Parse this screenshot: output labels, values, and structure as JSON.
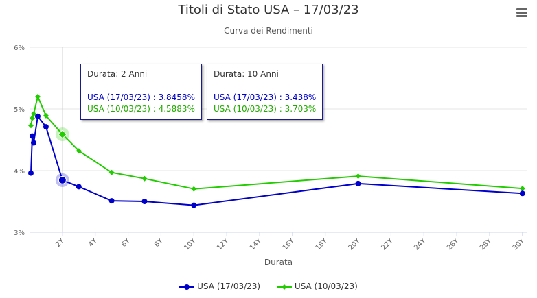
{
  "menu_icon": "hamburger-menu-icon",
  "chart_data": {
    "type": "line",
    "title": "Titoli di Stato USA – 17/03/23",
    "subtitle": "Curva dei Rendimenti",
    "xlabel": "Durata",
    "ylabel": "",
    "xlim": [
      0,
      30.3
    ],
    "ylim": [
      3,
      6
    ],
    "x_ticks": [
      "2Y",
      "4Y",
      "6Y",
      "8Y",
      "10Y",
      "12Y",
      "14Y",
      "16Y",
      "18Y",
      "20Y",
      "22Y",
      "24Y",
      "26Y",
      "28Y",
      "30Y"
    ],
    "y_ticks": [
      "3%",
      "4%",
      "5%",
      "6%"
    ],
    "grid": "horizontal",
    "legend_position": "bottom",
    "series": [
      {
        "name": "USA (17/03/23)",
        "color": "#0000cc",
        "marker": "circle",
        "x": [
          0.083,
          0.167,
          0.25,
          0.5,
          1,
          2,
          3,
          5,
          7,
          10,
          20,
          30
        ],
        "y": [
          3.96,
          4.56,
          4.45,
          4.88,
          4.71,
          3.8458,
          3.74,
          3.51,
          3.5,
          3.438,
          3.79,
          3.63
        ]
      },
      {
        "name": "USA (10/03/23)",
        "color": "#22cc00",
        "marker": "diamond",
        "x": [
          0.083,
          0.167,
          0.25,
          0.5,
          1,
          2,
          3,
          5,
          7,
          10,
          20,
          30
        ],
        "y": [
          4.73,
          4.85,
          4.92,
          5.2,
          4.89,
          4.5883,
          4.32,
          3.97,
          3.87,
          3.703,
          3.91,
          3.71
        ]
      }
    ]
  },
  "tooltips": [
    {
      "header": "Durata: 2 Anni",
      "sep": "----------------",
      "line1": "USA (17/03/23) : 3.8458%",
      "line2": "USA (10/03/23) : 4.5883%"
    },
    {
      "header": "Durata: 10 Anni",
      "sep": "----------------",
      "line1": "USA (17/03/23) : 3.438%",
      "line2": "USA (10/03/23) : 3.703%"
    }
  ]
}
